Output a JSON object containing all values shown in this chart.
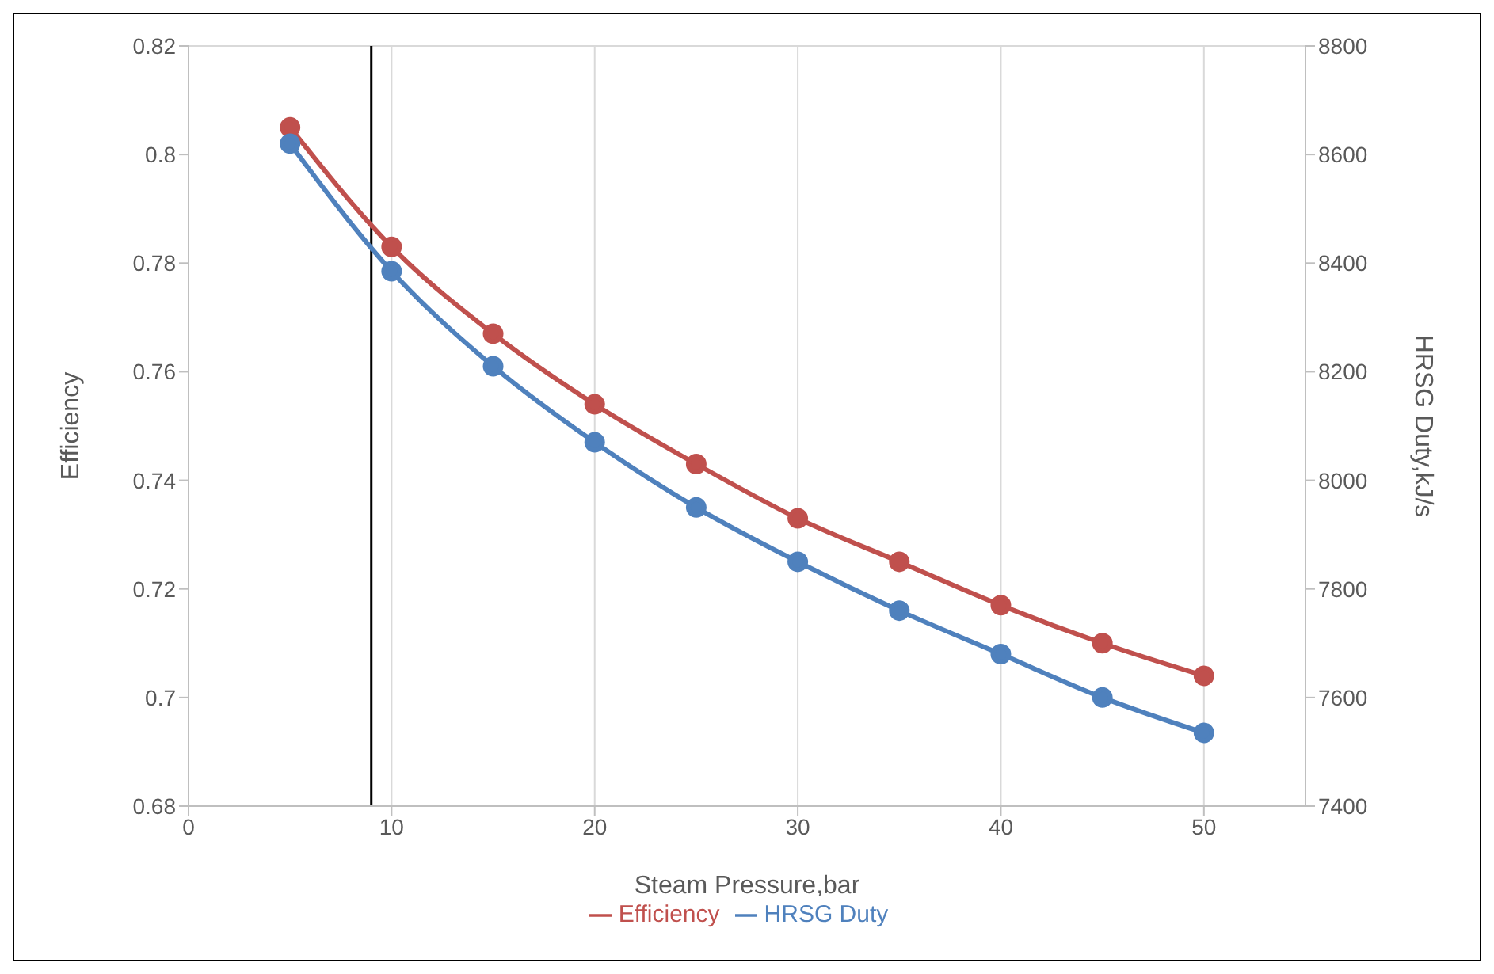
{
  "chart_data": {
    "type": "line",
    "xlabel": "Steam Pressure,bar",
    "ylabel": "Efficiency",
    "y2label": "HRSG Duty,kJ/s",
    "x": [
      5,
      10,
      15,
      20,
      25,
      30,
      35,
      40,
      45,
      50
    ],
    "series": [
      {
        "name": "Efficiency",
        "color": "#c0504d",
        "values": [
          0.805,
          0.783,
          0.767,
          0.754,
          0.743,
          0.733,
          0.725,
          0.717,
          0.71,
          0.704
        ]
      },
      {
        "name": "HRSG Duty",
        "color": "#4f81bd",
        "axis": "y2",
        "values": [
          8620,
          8385,
          8210,
          8070,
          7950,
          7850,
          7760,
          7680,
          7600,
          7535
        ]
      }
    ],
    "xlim": [
      0,
      55
    ],
    "xticks": [
      0,
      10,
      20,
      30,
      40,
      50
    ],
    "ylim": [
      0.68,
      0.82
    ],
    "yticks": [
      0.68,
      0.7,
      0.72,
      0.74,
      0.76,
      0.78,
      0.8,
      0.82
    ],
    "y2lim": [
      7400,
      8800
    ],
    "y2ticks": [
      7400,
      7600,
      7800,
      8000,
      8200,
      8400,
      8600,
      8800
    ],
    "ref_lines": [
      {
        "axis": "x",
        "value": 9,
        "color": "#000000"
      }
    ],
    "grid": true,
    "legend": "bottom",
    "marker": "circle",
    "line_style": "solid"
  }
}
